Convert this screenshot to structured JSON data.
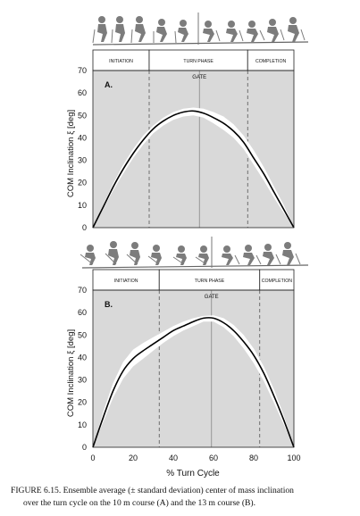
{
  "figure": {
    "x_axis_label": "% Turn Cycle",
    "caption": {
      "line1": "FIGURE 6.15.  Ensemble average (± standard deviation) center of mass inclination",
      "line2": "over the turn cycle on the 10 m course (A) and the 13 m course (B)."
    }
  },
  "chart_data": [
    {
      "type": "line",
      "panel_label": "A.",
      "ylabel": "COM Inclination ξ [deg]",
      "xlabel": "",
      "xlim": [
        0,
        100
      ],
      "ylim": [
        0,
        70
      ],
      "x_ticks": [
        "0",
        "20",
        "40",
        "60",
        "80",
        "100"
      ],
      "y_ticks": [
        "0",
        "10",
        "20",
        "30",
        "40",
        "50",
        "60",
        "70"
      ],
      "show_x_tick_labels": false,
      "phases": [
        {
          "label": "INITIATION",
          "start": 0,
          "end": 28
        },
        {
          "label": "TURN PHASE",
          "start": 28,
          "end": 77
        },
        {
          "label": "COMPLETION",
          "start": 77,
          "end": 100
        }
      ],
      "gate": {
        "label": "GATE",
        "x": 53
      },
      "phase_boundaries": [
        28,
        77
      ],
      "series": [
        {
          "x": [
            0,
            5,
            10,
            15,
            20,
            25,
            30,
            35,
            40,
            45,
            50,
            55,
            60,
            65,
            70,
            75,
            80,
            85,
            90,
            95,
            100
          ],
          "mean": [
            0,
            9,
            18,
            26,
            33,
            39,
            44,
            47.5,
            50,
            51.5,
            52,
            51,
            49,
            46.5,
            43,
            38,
            31,
            24,
            16,
            8,
            0
          ],
          "upper": [
            0,
            10,
            19.5,
            28,
            35,
            41,
            45.5,
            49,
            51.5,
            53,
            53.5,
            53,
            51.5,
            49.5,
            46,
            41,
            34.5,
            27,
            18.5,
            10,
            0
          ],
          "lower": [
            0,
            8,
            16.5,
            24,
            31,
            37,
            42,
            45.5,
            48,
            49.5,
            50,
            49,
            46.5,
            43.5,
            40,
            35,
            28,
            21,
            13.5,
            6.5,
            0
          ]
        }
      ]
    },
    {
      "type": "line",
      "panel_label": "B.",
      "ylabel": "COM Inclination ξ [deg]",
      "xlabel": "% Turn Cycle",
      "xlim": [
        0,
        100
      ],
      "ylim": [
        0,
        70
      ],
      "x_ticks": [
        "0",
        "20",
        "40",
        "60",
        "80",
        "100"
      ],
      "y_ticks": [
        "0",
        "10",
        "20",
        "30",
        "40",
        "50",
        "60",
        "70"
      ],
      "show_x_tick_labels": true,
      "phases": [
        {
          "label": "INITIATION",
          "start": 0,
          "end": 33
        },
        {
          "label": "TURN PHASE",
          "start": 33,
          "end": 83
        },
        {
          "label": "COMPLETION",
          "start": 83,
          "end": 100
        }
      ],
      "gate": {
        "label": "GATE",
        "x": 59
      },
      "phase_boundaries": [
        33,
        83
      ],
      "series": [
        {
          "x": [
            0,
            5,
            10,
            15,
            20,
            25,
            30,
            35,
            40,
            45,
            50,
            55,
            60,
            65,
            70,
            75,
            80,
            85,
            90,
            95,
            100
          ],
          "mean": [
            0,
            13,
            25,
            34,
            39.5,
            43,
            46,
            49,
            52,
            54,
            56,
            57.5,
            57.5,
            55.5,
            52,
            47,
            41,
            33,
            23,
            12,
            0
          ],
          "upper": [
            0,
            15.5,
            28.5,
            38,
            43.5,
            46.5,
            49,
            51.5,
            54,
            56,
            57.5,
            58.5,
            58.8,
            57.5,
            54.5,
            50,
            44,
            36,
            26,
            14,
            0
          ],
          "lower": [
            0,
            11,
            22,
            30.5,
            36,
            39.5,
            43,
            46.5,
            49.5,
            52,
            54,
            56,
            56,
            53.5,
            49.5,
            44,
            37.5,
            29.5,
            20,
            10,
            0
          ]
        }
      ]
    }
  ]
}
